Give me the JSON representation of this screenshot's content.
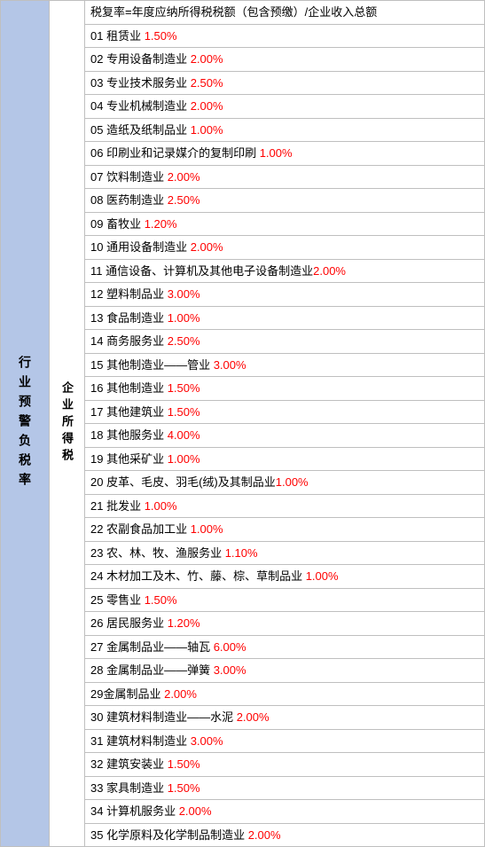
{
  "left_heading": "行业预警负税率",
  "mid_heading": "企业所得税",
  "header_row": "税复率=年度应纳所得税税额（包含预缴）/企业收入总额",
  "rows": [
    {
      "num": "01",
      "label": " 租赁业 ",
      "rate": "1.50%"
    },
    {
      "num": "02",
      "label": " 专用设备制造业 ",
      "rate": "2.00%"
    },
    {
      "num": "03",
      "label": " 专业技术服务业 ",
      "rate": "2.50%"
    },
    {
      "num": "04",
      "label": " 专业机械制造业 ",
      "rate": "2.00%"
    },
    {
      "num": "05",
      "label": " 造纸及纸制品业 ",
      "rate": "1.00%"
    },
    {
      "num": "06",
      "label": " 印刷业和记录媒介的复制印刷 ",
      "rate": "1.00%"
    },
    {
      "num": "07",
      "label": " 饮料制造业 ",
      "rate": "2.00%"
    },
    {
      "num": "08",
      "label": " 医药制造业 ",
      "rate": "2.50%"
    },
    {
      "num": "09",
      "label": " 畜牧业 ",
      "rate": "1.20%"
    },
    {
      "num": "10",
      "label": " 通用设备制造业 ",
      "rate": "2.00%"
    },
    {
      "num": "11",
      "label": " 通信设备、计算机及其他电子设备制造业",
      "rate": "2.00%"
    },
    {
      "num": "12",
      "label": " 塑料制品业 ",
      "rate": "3.00%"
    },
    {
      "num": "13",
      "label": " 食品制造业 ",
      "rate": "1.00%"
    },
    {
      "num": "14",
      "label": " 商务服务业 ",
      "rate": "2.50%"
    },
    {
      "num": "15",
      "label": " 其他制造业——管业 ",
      "rate": "3.00%"
    },
    {
      "num": "16",
      "label": " 其他制造业 ",
      "rate": "1.50%"
    },
    {
      "num": "17",
      "label": " 其他建筑业 ",
      "rate": "1.50%"
    },
    {
      "num": "18",
      "label": " 其他服务业 ",
      "rate": "4.00%"
    },
    {
      "num": "19",
      "label": " 其他采矿业 ",
      "rate": "1.00%"
    },
    {
      "num": "20",
      "label": " 皮革、毛皮、羽毛(绒)及其制品业",
      "rate": "1.00%"
    },
    {
      "num": "21",
      "label": " 批发业 ",
      "rate": "1.00%"
    },
    {
      "num": "22",
      "label": " 农副食品加工业 ",
      "rate": "1.00%"
    },
    {
      "num": "23",
      "label": " 农、林、牧、渔服务业 ",
      "rate": "1.10%"
    },
    {
      "num": "24",
      "label": " 木材加工及木、竹、藤、棕、草制品业 ",
      "rate": "1.00%"
    },
    {
      "num": "25",
      "label": " 零售业 ",
      "rate": "1.50%"
    },
    {
      "num": "26",
      "label": " 居民服务业 ",
      "rate": "1.20%"
    },
    {
      "num": "27",
      "label": " 金属制品业——轴瓦 ",
      "rate": "6.00%"
    },
    {
      "num": "28",
      "label": " 金属制品业——弹簧 ",
      "rate": "3.00%"
    },
    {
      "num": "29",
      "label": "金属制品业 ",
      "rate": "2.00%"
    },
    {
      "num": "30",
      "label": " 建筑材料制造业——水泥 ",
      "rate": "2.00%"
    },
    {
      "num": "31",
      "label": " 建筑材料制造业 ",
      "rate": "3.00%"
    },
    {
      "num": "32",
      "label": " 建筑安装业 ",
      "rate": "1.50%"
    },
    {
      "num": "33",
      "label": " 家具制造业 ",
      "rate": "1.50%"
    },
    {
      "num": "34",
      "label": " 计算机服务业 ",
      "rate": "2.00%"
    },
    {
      "num": "35",
      "label": " 化学原料及化学制品制造业 ",
      "rate": "2.00%"
    }
  ],
  "colors": {
    "left_bg": "#b4c6e7",
    "border": "#bfbfbf",
    "rate_color": "#ff0000",
    "text_color": "#000000",
    "bg": "#ffffff"
  },
  "font_size": 13
}
